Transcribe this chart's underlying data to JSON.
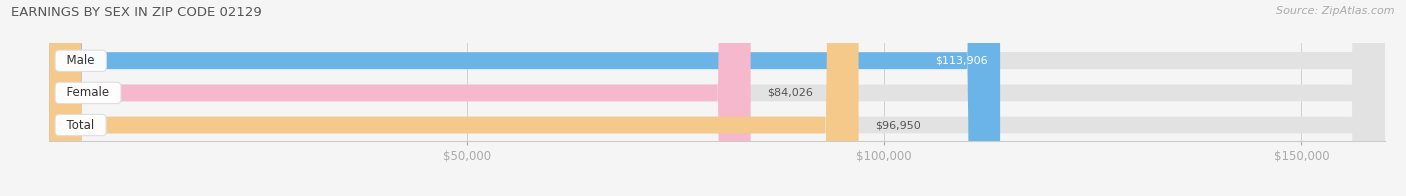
{
  "title": "EARNINGS BY SEX IN ZIP CODE 02129",
  "source": "Source: ZipAtlas.com",
  "categories": [
    "Male",
    "Female",
    "Total"
  ],
  "values": [
    113906,
    84026,
    96950
  ],
  "bar_colors": [
    "#6ab4e8",
    "#f5b8cc",
    "#f5c98a"
  ],
  "bar_bg_color": "#e2e2e2",
  "value_labels": [
    "$113,906",
    "$84,026",
    "$96,950"
  ],
  "xlim_min": 0,
  "xlim_max": 160000,
  "x_ticks": [
    50000,
    100000,
    150000
  ],
  "x_tick_labels": [
    "$50,000",
    "$100,000",
    "$150,000"
  ],
  "bar_height": 0.52,
  "fig_bg_color": "#f5f5f5",
  "title_fontsize": 9.5,
  "source_fontsize": 8,
  "label_fontsize": 8.5,
  "value_fontsize": 8,
  "tick_fontsize": 8.5,
  "value_inside_threshold": 110000
}
